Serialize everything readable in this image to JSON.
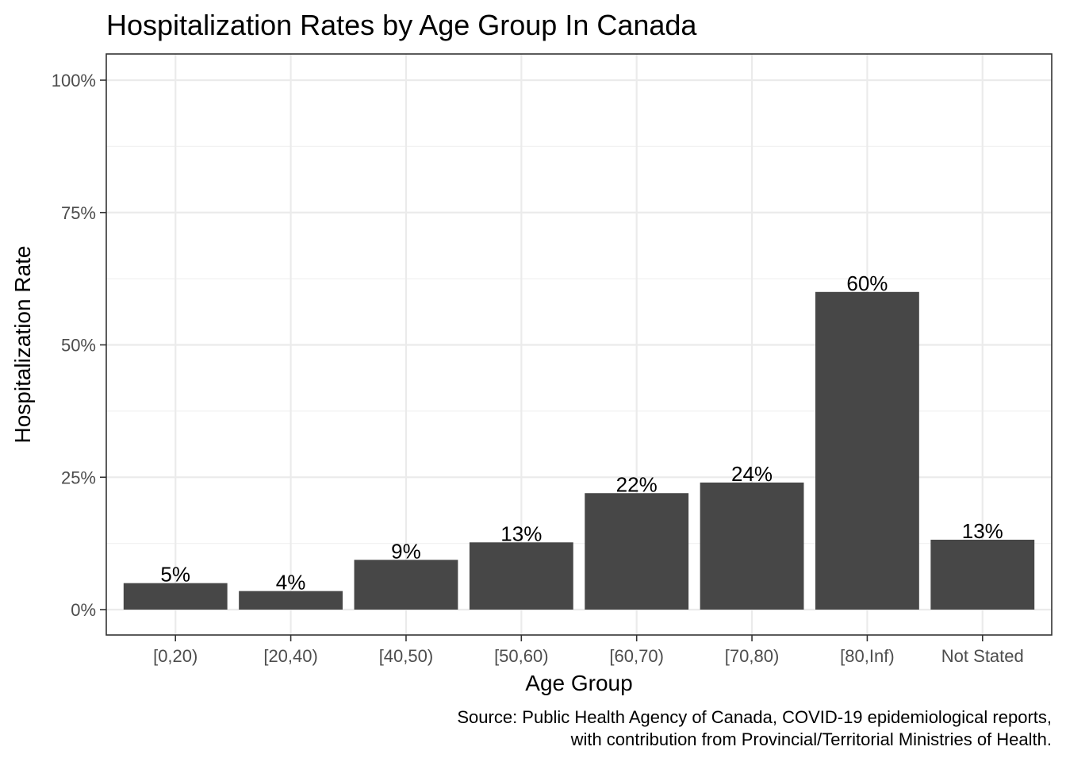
{
  "chart_data": {
    "type": "bar",
    "title": "Hospitalization Rates by Age Group In Canada",
    "xlabel": "Age Group",
    "ylabel": "Hospitalization Rate",
    "categories": [
      "[0,20)",
      "[20,40)",
      "[40,50)",
      "[50,60)",
      "[60,70)",
      "[70,80)",
      "[80,Inf)",
      "Not Stated"
    ],
    "values": [
      5,
      3.5,
      9.4,
      12.7,
      22,
      24,
      60,
      13.2
    ],
    "value_labels": [
      "5%",
      "4%",
      "9%",
      "13%",
      "22%",
      "24%",
      "60%",
      "13%"
    ],
    "ylim": [
      0,
      100
    ],
    "y_ticks": [
      0,
      25,
      50,
      75,
      100
    ],
    "y_tick_labels": [
      "0%",
      "25%",
      "50%",
      "75%",
      "100%"
    ],
    "grid": true,
    "legend": "none",
    "bar_color": "#474747",
    "caption": [
      "Source: Public Health Agency of Canada, COVID-19 epidemiological reports,",
      "with contribution from Provincial/Territorial Ministries of Health."
    ]
  }
}
